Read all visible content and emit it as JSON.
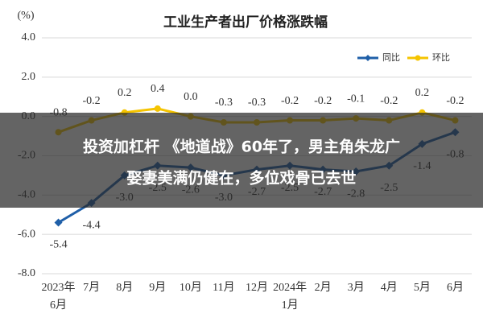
{
  "chart_data": {
    "type": "line",
    "title": "工业生产者出厂价格涨跌幅",
    "y_label": "(%)",
    "categories": [
      "2023年\n6月",
      "7月",
      "8月",
      "9月",
      "10月",
      "11月",
      "12月",
      "2024年\n1月",
      "2月",
      "3月",
      "4月",
      "5月",
      "6月"
    ],
    "series": [
      {
        "name": "同比",
        "color": "#1f5fa8",
        "marker": "diamond",
        "values": [
          -5.4,
          -4.4,
          -3.0,
          -2.5,
          -2.6,
          -3.0,
          -2.7,
          -2.5,
          -2.7,
          -2.8,
          -2.5,
          -1.4,
          -0.8
        ],
        "value_labels": [
          "-5.4",
          "-4.4",
          "-3.0",
          "-2.5",
          "-2.6",
          "-3.0",
          "-2.7",
          "-2.5",
          "-2.7",
          "-2.8",
          "-2.5",
          "-1.4",
          "-0.8"
        ]
      },
      {
        "name": "环比",
        "color": "#f5c400",
        "marker": "circle",
        "values": [
          -0.8,
          -0.2,
          0.2,
          0.4,
          0.0,
          -0.3,
          -0.3,
          -0.2,
          -0.2,
          -0.1,
          -0.2,
          0.2,
          -0.2
        ],
        "value_labels": [
          "-0.8",
          "-0.2",
          "0.2",
          "0.4",
          "0.0",
          "-0.3",
          "-0.3",
          "-0.2",
          "-0.2",
          "-0.1",
          "-0.2",
          "0.2",
          "-0.2"
        ]
      }
    ],
    "ylim": [
      -8,
      4
    ],
    "yticks": [
      {
        "value": 4,
        "label": "4.0"
      },
      {
        "value": 2,
        "label": "2.0"
      },
      {
        "value": 0,
        "label": "0.0"
      },
      {
        "value": -2,
        "label": "-2.0"
      },
      {
        "value": -4,
        "label": "-4.0"
      },
      {
        "value": -6,
        "label": "-6.0"
      },
      {
        "value": -8,
        "label": "-8.0"
      }
    ],
    "grid": true,
    "legend": "top-right"
  },
  "banner": {
    "lines": [
      "投资加杠杆 《地道战》60年了，男主角朱龙广",
      "娶妻美满仍健在，多位戏骨已去世"
    ]
  }
}
